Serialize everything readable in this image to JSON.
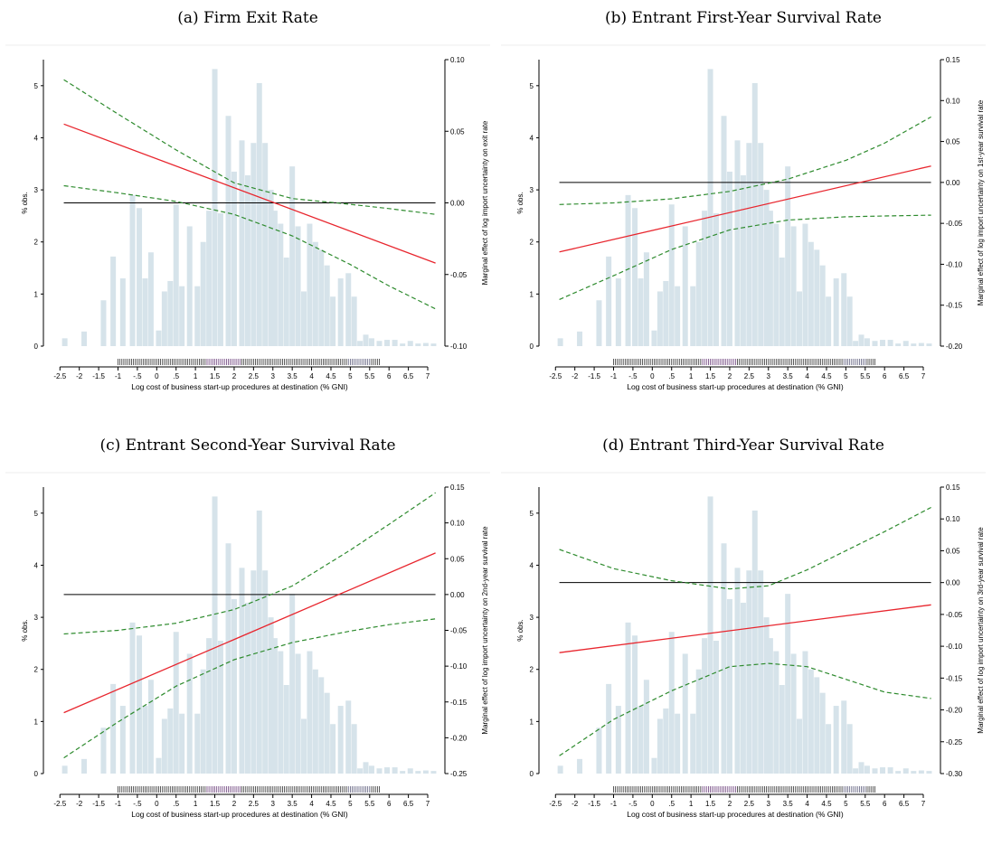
{
  "figure": {
    "xlabel": "Log cost of business start-up procedures at destination (% GNI)",
    "left_ylabel": "% obs.",
    "x_ticks": [
      -2.5,
      -2,
      -1.5,
      -1,
      -0.5,
      0,
      0.5,
      1,
      1.5,
      2,
      2.5,
      3,
      3.5,
      4,
      4.5,
      5,
      5.5,
      6,
      6.5,
      7
    ],
    "x_tick_labels": [
      "-2.5",
      "-2",
      "-1.5",
      "-1",
      "-.5",
      "0",
      ".5",
      "1",
      "1.5",
      "2",
      "2.5",
      "3",
      "3.5",
      "4",
      "4.5",
      "5",
      "5.5",
      "6",
      "6.5",
      "7"
    ],
    "hist_ticks": [
      0,
      1,
      2,
      3,
      4,
      5
    ],
    "colors": {
      "histogram": "#d6e3ea",
      "effect_line": "#e8262e",
      "ci_line": "#2e8b2e",
      "zero_line": "#000000",
      "rug": "#333333"
    }
  },
  "chart_data": [
    {
      "type": "line",
      "title": "(a) Firm Exit Rate",
      "right_ylabel": "Marginal effect of log import uncertainty on exit rate",
      "y_ticks": [
        0.1,
        0.05,
        0.0,
        -0.05,
        -0.1
      ],
      "y_tick_labels": [
        "0.10",
        "0.05",
        "0.00",
        "-0.05",
        "-0.10"
      ],
      "ylim": [
        -0.1,
        0.1
      ],
      "x": [
        -2.4,
        7.2
      ],
      "series": [
        {
          "role": "effect",
          "values": [
            0.055,
            -0.042
          ]
        },
        {
          "role": "ci_upper",
          "x": [
            -2.4,
            -1,
            0.5,
            2,
            3.5,
            5,
            6,
            7.2
          ],
          "values": [
            0.086,
            0.062,
            0.037,
            0.014,
            0.003,
            -0.001,
            -0.004,
            -0.008
          ]
        },
        {
          "role": "ci_lower",
          "x": [
            -2.4,
            -1,
            0.5,
            2,
            3.5,
            5,
            6,
            7.2
          ],
          "values": [
            0.012,
            0.007,
            0.001,
            -0.008,
            -0.023,
            -0.043,
            -0.058,
            -0.074
          ]
        }
      ]
    },
    {
      "type": "line",
      "title": "(b) Entrant First-Year Survival Rate",
      "right_ylabel": "Marginal effect of log import uncertainty on 1st-year survival rate",
      "y_ticks": [
        0.15,
        0.1,
        0.05,
        0.0,
        -0.05,
        -0.1,
        -0.15,
        -0.2
      ],
      "y_tick_labels": [
        "0.15",
        "0.10",
        "0.05",
        "0.00",
        "-0.05",
        "-0.10",
        "-0.15",
        "-0.20"
      ],
      "ylim": [
        -0.2,
        0.15
      ],
      "x": [
        -2.4,
        7.2
      ],
      "series": [
        {
          "role": "effect",
          "values": [
            -0.085,
            0.02
          ]
        },
        {
          "role": "ci_upper",
          "x": [
            -2.4,
            -1,
            0.5,
            2,
            3.5,
            5,
            6,
            7.2
          ],
          "values": [
            -0.027,
            -0.025,
            -0.02,
            -0.011,
            0.004,
            0.027,
            0.048,
            0.08
          ]
        },
        {
          "role": "ci_lower",
          "x": [
            -2.4,
            -1,
            0.5,
            2,
            3.5,
            5,
            6,
            7.2
          ],
          "values": [
            -0.143,
            -0.114,
            -0.082,
            -0.058,
            -0.046,
            -0.042,
            -0.041,
            -0.04
          ]
        }
      ]
    },
    {
      "type": "line",
      "title": "(c) Entrant Second-Year Survival Rate",
      "right_ylabel": "Marginal effect of log import uncertainty on 2nd-year survival rate",
      "y_ticks": [
        0.15,
        0.1,
        0.05,
        0.0,
        -0.05,
        -0.1,
        -0.15,
        -0.2,
        -0.25
      ],
      "y_tick_labels": [
        "0.15",
        "0.10",
        "0.05",
        "0.00",
        "-0.05",
        "-0.10",
        "-0.15",
        "-0.20",
        "-0.25"
      ],
      "ylim": [
        -0.25,
        0.15
      ],
      "x": [
        -2.4,
        7.2
      ],
      "series": [
        {
          "role": "effect",
          "values": [
            -0.165,
            0.058
          ]
        },
        {
          "role": "ci_upper",
          "x": [
            -2.4,
            -1,
            0.5,
            2,
            3.5,
            5,
            6,
            7.2
          ],
          "values": [
            -0.055,
            -0.05,
            -0.04,
            -0.021,
            0.012,
            0.062,
            0.098,
            0.142
          ]
        },
        {
          "role": "ci_lower",
          "x": [
            -2.4,
            -1,
            0.5,
            2,
            3.5,
            5,
            6,
            7.2
          ],
          "values": [
            -0.228,
            -0.178,
            -0.128,
            -0.091,
            -0.067,
            -0.051,
            -0.042,
            -0.034
          ]
        }
      ]
    },
    {
      "type": "line",
      "title": "(d) Entrant Third-Year Survival Rate",
      "right_ylabel": "Marginal effect of log import uncertainty on 3rd-year survival rate",
      "y_ticks": [
        0.15,
        0.1,
        0.05,
        0.0,
        -0.05,
        -0.1,
        -0.15,
        -0.2,
        -0.25,
        -0.3
      ],
      "y_tick_labels": [
        "0.15",
        "0.10",
        "0.05",
        "0.00",
        "-0.05",
        "-0.10",
        "-0.15",
        "-0.20",
        "-0.25",
        "-0.30"
      ],
      "ylim": [
        -0.3,
        0.15
      ],
      "x": [
        -2.4,
        7.2
      ],
      "series": [
        {
          "role": "effect",
          "values": [
            -0.11,
            -0.035
          ]
        },
        {
          "role": "ci_upper",
          "x": [
            -2.4,
            -1,
            0.5,
            2,
            3,
            4,
            5,
            6,
            7.2
          ],
          "values": [
            0.052,
            0.022,
            0.003,
            -0.01,
            -0.005,
            0.02,
            0.05,
            0.08,
            0.118
          ]
        },
        {
          "role": "ci_lower",
          "x": [
            -2.4,
            -1,
            0.5,
            2,
            3,
            4,
            5,
            6,
            7.2
          ],
          "values": [
            -0.272,
            -0.215,
            -0.17,
            -0.132,
            -0.127,
            -0.132,
            -0.152,
            -0.172,
            -0.182
          ]
        }
      ]
    }
  ],
  "histogram": {
    "bins": [
      -2.375,
      -1.875,
      -1.375,
      -1.125,
      -0.875,
      -0.625,
      -0.45,
      -0.3,
      -0.15,
      0.05,
      0.2,
      0.35,
      0.5,
      0.65,
      0.85,
      1.05,
      1.2,
      1.35,
      1.5,
      1.65,
      1.85,
      2.0,
      2.2,
      2.35,
      2.5,
      2.65,
      2.8,
      2.95,
      3.05,
      3.2,
      3.35,
      3.5,
      3.65,
      3.8,
      3.95,
      4.1,
      4.25,
      4.4,
      4.55,
      4.75,
      4.95,
      5.1,
      5.25,
      5.4,
      5.55,
      5.75,
      5.95,
      6.15,
      6.35,
      6.55,
      6.75,
      6.95,
      7.15
    ],
    "values": [
      0.15,
      0.28,
      0.88,
      1.72,
      1.3,
      2.9,
      2.65,
      1.3,
      1.8,
      0.3,
      1.05,
      1.25,
      2.72,
      1.15,
      2.3,
      1.15,
      2.0,
      2.6,
      5.32,
      2.55,
      4.42,
      3.35,
      3.95,
      3.28,
      3.9,
      5.05,
      3.9,
      3.0,
      2.6,
      2.35,
      1.7,
      3.45,
      2.3,
      1.05,
      2.35,
      2.0,
      1.85,
      1.55,
      0.95,
      1.3,
      1.4,
      0.95,
      0.1,
      0.22,
      0.15,
      0.1,
      0.12,
      0.12,
      0.05,
      0.1,
      0.05,
      0.06,
      0.05
    ],
    "bin_width": 0.14,
    "ylim": [
      0,
      5.5
    ]
  }
}
